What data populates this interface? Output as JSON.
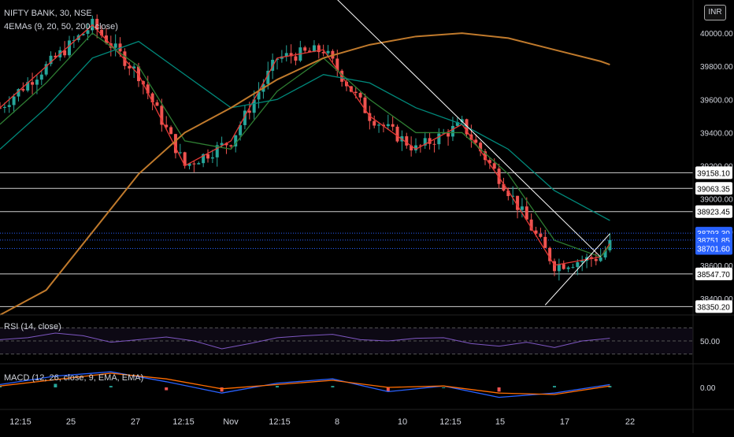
{
  "header": {
    "symbol": "NIFTY BANK, 30, NSE",
    "indicator": "4EMAs (9, 20, 50, 200, close)",
    "currency": "INR"
  },
  "rsi_panel": {
    "label": "RSI (14, close)",
    "value_label": "50.00"
  },
  "macd_panel": {
    "label": "MACD (12, 26, close, 9, EMA, EMA)",
    "value_label": "0.00"
  },
  "colors": {
    "bg": "#000000",
    "up": "#26a69a",
    "down": "#ef5350",
    "ema9": "#e53935",
    "ema20": "#2e7d32",
    "ema50": "#00897b",
    "ema200": "#c07a2c",
    "rsi": "#7e57c2",
    "macd": "#2962ff",
    "signal": "#ff6d00",
    "badge_blue": "#2962ff"
  },
  "chart_data": [
    {
      "type": "candlestick",
      "title": "NIFTY BANK, 30, NSE",
      "y_axis_ticks": [
        "40000.00",
        "39800.00",
        "39600.00",
        "39400.00",
        "39200.00",
        "39000.00",
        "38800.00",
        "38600.00",
        "38400.00"
      ],
      "ylim": [
        38300,
        40200
      ],
      "x_tick_labels": [
        "12:15",
        "25",
        "27",
        "12:15",
        "Nov",
        "12:15",
        "8",
        "10",
        "12:15",
        "15",
        "17",
        "22"
      ],
      "horizontal_levels": [
        {
          "value": 39158.1,
          "label": "39158.10",
          "style": "solid"
        },
        {
          "value": 39063.35,
          "label": "39063.35",
          "style": "solid"
        },
        {
          "value": 38923.45,
          "label": "38923.45",
          "style": "solid"
        },
        {
          "value": 38793.3,
          "label": "38793.30",
          "style": "dotted",
          "badge": "blue"
        },
        {
          "value": 38751.85,
          "label": "38751.85",
          "style": "dotted",
          "badge": "blue"
        },
        {
          "value": 38701.6,
          "label": "38701.60",
          "style": "dotted",
          "badge": "blue"
        },
        {
          "value": 38547.7,
          "label": "38547.70",
          "style": "solid"
        },
        {
          "value": 38350.2,
          "label": "38350.20",
          "style": "solid"
        }
      ],
      "trendlines": [
        {
          "points": [
            [
              72,
              40230
            ],
            [
              130,
              38650
            ]
          ]
        },
        {
          "points": [
            [
              118,
              38360
            ],
            [
              132,
              38790
            ]
          ]
        }
      ],
      "series": [
        {
          "name": "EMA 9",
          "key": "ema9",
          "x": [
            0,
            10,
            20,
            30,
            40,
            50,
            60,
            70,
            80,
            90,
            100,
            110,
            120,
            130,
            132
          ],
          "values": [
            39550,
            39800,
            40050,
            39750,
            39200,
            39350,
            39850,
            39900,
            39500,
            39300,
            39450,
            39050,
            38600,
            38650,
            38730
          ]
        },
        {
          "name": "EMA 20",
          "key": "ema20",
          "x": [
            0,
            10,
            20,
            30,
            40,
            50,
            60,
            70,
            80,
            90,
            100,
            110,
            120,
            130,
            132
          ],
          "values": [
            39450,
            39700,
            40000,
            39800,
            39350,
            39300,
            39650,
            39850,
            39600,
            39400,
            39400,
            39150,
            38750,
            38650,
            38720
          ]
        },
        {
          "name": "EMA 50",
          "key": "ema50",
          "x": [
            0,
            10,
            20,
            30,
            40,
            50,
            60,
            70,
            80,
            90,
            100,
            110,
            120,
            130,
            132
          ],
          "values": [
            39300,
            39550,
            39850,
            39950,
            39750,
            39550,
            39600,
            39750,
            39700,
            39550,
            39450,
            39300,
            39050,
            38900,
            38870
          ]
        },
        {
          "name": "EMA 200",
          "key": "ema200",
          "x": [
            0,
            10,
            20,
            30,
            40,
            50,
            60,
            70,
            80,
            90,
            100,
            110,
            120,
            130,
            132
          ],
          "values": [
            38300,
            38450,
            38800,
            39150,
            39400,
            39550,
            39720,
            39850,
            39930,
            39980,
            40000,
            39970,
            39900,
            39830,
            39810
          ]
        }
      ]
    },
    {
      "type": "line",
      "title": "RSI (14, close)",
      "y_axis_ticks": [
        "50.00"
      ],
      "ylim": [
        20,
        80
      ],
      "x": [
        0,
        6,
        12,
        18,
        24,
        30,
        36,
        42,
        48,
        54,
        60,
        66,
        72,
        78,
        84,
        90,
        96,
        102,
        108,
        114,
        120,
        126,
        132
      ],
      "values": [
        52,
        55,
        62,
        58,
        48,
        52,
        56,
        50,
        38,
        46,
        55,
        58,
        60,
        52,
        50,
        54,
        55,
        46,
        42,
        48,
        40,
        50,
        54
      ]
    },
    {
      "type": "bar",
      "title": "MACD (12, 26, close, 9, EMA, EMA)",
      "y_axis_ticks": [
        "0.00"
      ],
      "x": [
        0,
        12,
        24,
        36,
        48,
        60,
        72,
        84,
        96,
        108,
        120,
        132
      ],
      "macd_line": [
        20,
        80,
        110,
        40,
        -40,
        30,
        60,
        -30,
        10,
        -70,
        -40,
        20
      ],
      "signal_line": [
        10,
        55,
        100,
        60,
        -10,
        20,
        50,
        0,
        10,
        -40,
        -50,
        10
      ],
      "values": [
        10,
        25,
        10,
        -20,
        -30,
        10,
        10,
        -30,
        0,
        -30,
        10,
        10
      ]
    }
  ]
}
